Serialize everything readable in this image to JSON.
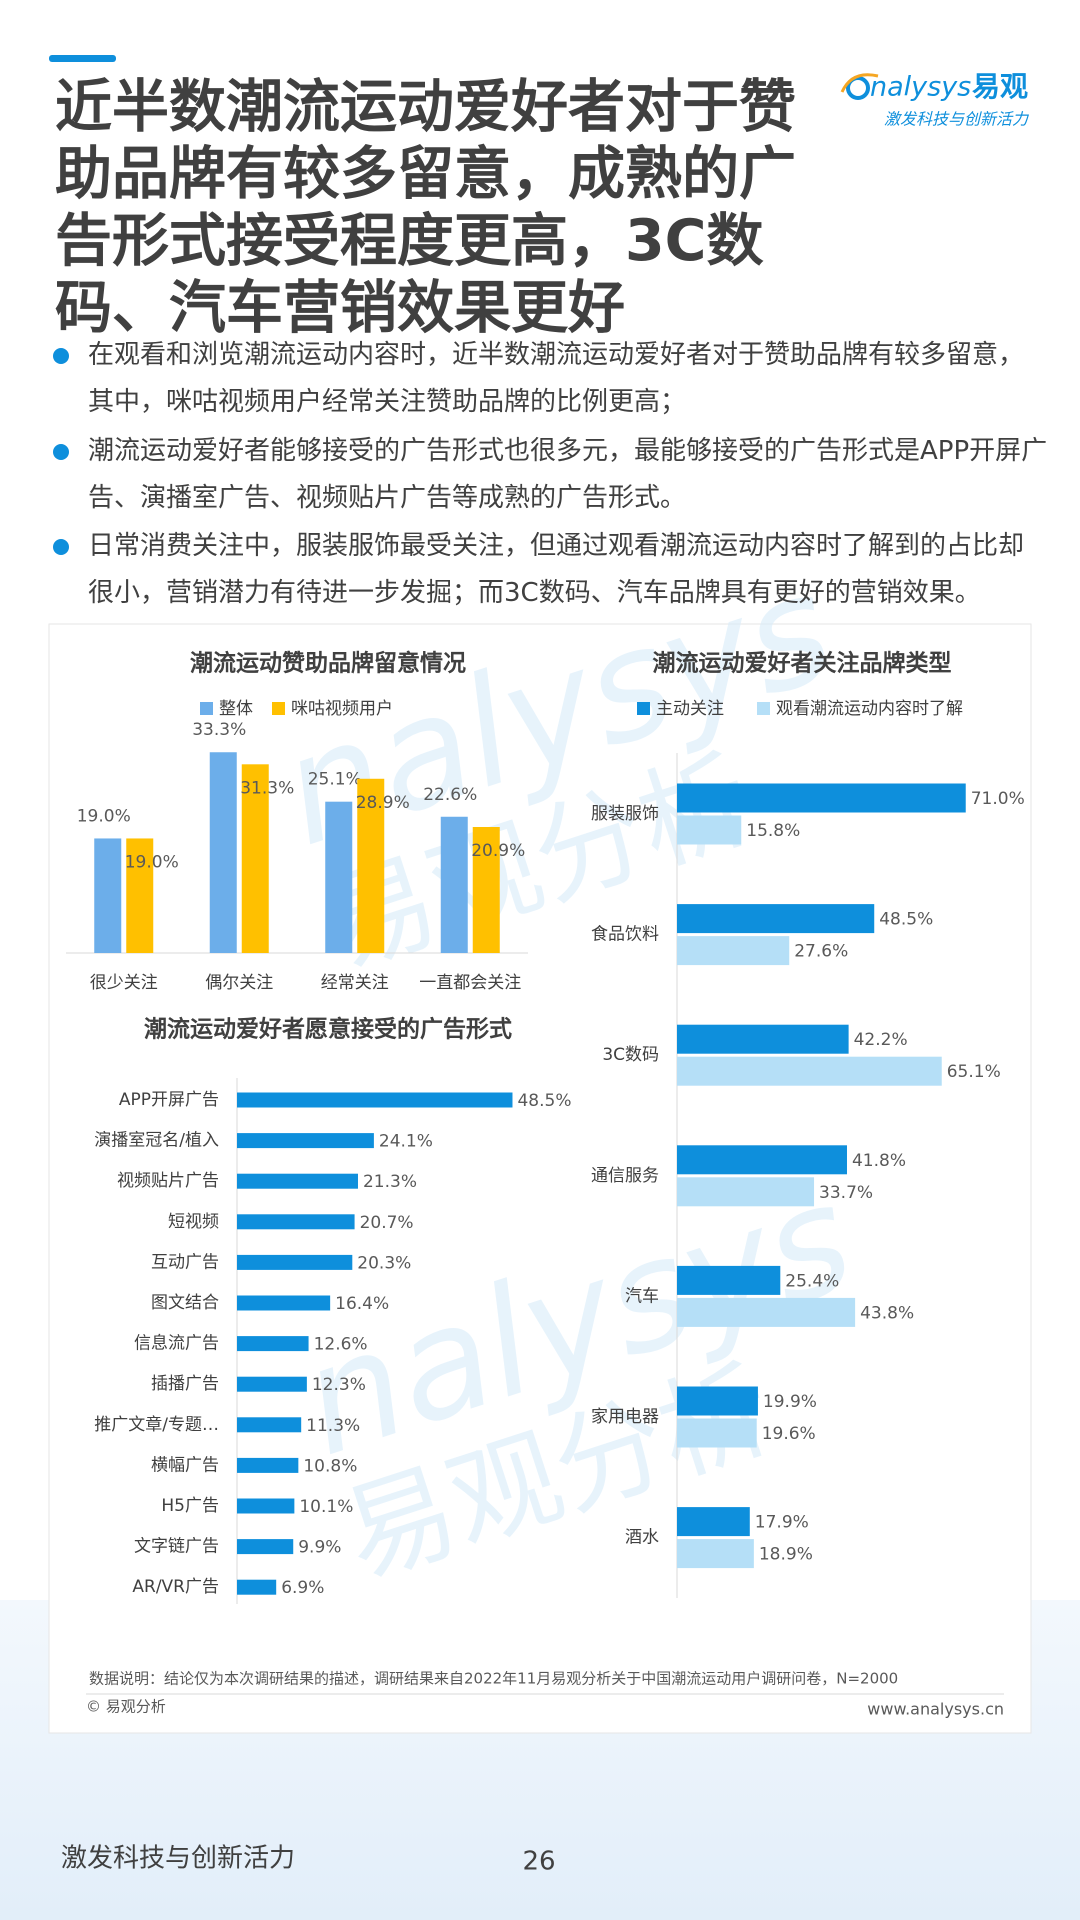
{
  "title": "近半数潮流运动爱好者对于赞助品牌有较多留意，成熟的广告形式接受程度更高，3C数码、汽车营销效果更好",
  "logo": {
    "name": "nalysys",
    "cn": "易观",
    "slogan": "激发科技与创新活力"
  },
  "bullets": [
    "在观看和浏览潮流运动内容时，近半数潮流运动爱好者对于赞助品牌有较多留意，其中，咪咕视频用户经常关注赞助品牌的比例更高；",
    "潮流运动爱好者能够接受的广告形式也很多元，最能够接受的广告形式是APP开屏广告、演播室广告、视频贴片广告等成熟的广告形式。",
    "日常消费关注中，服装服饰最受关注，但通过观看潮流运动内容时了解到的占比却很小，营销潜力有待进一步发掘；而3C数码、汽车品牌具有更好的营销效果。"
  ],
  "watermark": [
    "nalysys",
    "易观分析"
  ],
  "chart_data": [
    {
      "type": "bar",
      "title": "潮流运动赞助品牌留意情况",
      "categories": [
        "很少关注",
        "偶尔关注",
        "经常关注",
        "一直都会关注"
      ],
      "series": [
        {
          "name": "整体",
          "color": "#6caeea",
          "values": [
            19.0,
            33.3,
            25.1,
            22.6
          ],
          "value_labels": [
            "19.0%",
            "33.3%",
            "25.1%",
            "22.6%"
          ]
        },
        {
          "name": "咪咕视频用户",
          "color": "#ffc000",
          "values": [
            19.0,
            31.3,
            28.9,
            20.9
          ],
          "value_labels": [
            "19.0%",
            "31.3%",
            "28.9%",
            "20.9%"
          ]
        }
      ],
      "ylim": [
        0,
        35
      ],
      "legend": "top"
    },
    {
      "type": "barh",
      "title": "潮流运动爱好者关注品牌类型",
      "categories": [
        "服装服饰",
        "食品饮料",
        "3C数码",
        "通信服务",
        "汽车",
        "家用电器",
        "酒水"
      ],
      "series": [
        {
          "name": "主动关注",
          "color": "#0e8fdc",
          "values": [
            71.0,
            48.5,
            42.2,
            41.8,
            25.4,
            19.9,
            17.9
          ],
          "value_labels": [
            "71.0%",
            "48.5%",
            "42.2%",
            "41.8%",
            "25.4%",
            "19.9%",
            "17.9%"
          ]
        },
        {
          "name": "观看潮流运动内容时了解",
          "color": "#b5dff7",
          "values": [
            15.8,
            27.6,
            65.1,
            33.7,
            43.8,
            19.6,
            18.9
          ],
          "value_labels": [
            "15.8%",
            "27.6%",
            "65.1%",
            "33.7%",
            "43.8%",
            "19.6%",
            "18.9%"
          ]
        }
      ],
      "xlim": [
        0,
        75
      ],
      "legend": "top"
    },
    {
      "type": "barh",
      "title": "潮流运动爱好者愿意接受的广告形式",
      "categories": [
        "APP开屏广告",
        "演播室冠名/植入",
        "视频贴片广告",
        "短视频",
        "互动广告",
        "图文结合",
        "信息流广告",
        "插播广告",
        "推广文章/专题…",
        "横幅广告",
        "H5广告",
        "文字链广告",
        "AR/VR广告"
      ],
      "values": [
        48.5,
        24.1,
        21.3,
        20.7,
        20.3,
        16.4,
        12.6,
        12.3,
        11.3,
        10.8,
        10.1,
        9.9,
        6.9
      ],
      "value_labels": [
        "48.5%",
        "24.1%",
        "21.3%",
        "20.7%",
        "20.3%",
        "16.4%",
        "12.6%",
        "12.3%",
        "11.3%",
        "10.8%",
        "10.1%",
        "9.9%",
        "6.9%"
      ],
      "color": "#0e8fdc",
      "xlim": [
        0,
        50
      ]
    }
  ],
  "footnote": "数据说明：结论仅为本次调研结果的描述，调研结果来自2022年11月易观分析关于中国潮流运动用户调研问卷，N=2000",
  "copyright": "© 易观分析",
  "website": "www.analysys.cn",
  "footer": {
    "slogan": "激发科技与创新活力",
    "page": "26"
  }
}
